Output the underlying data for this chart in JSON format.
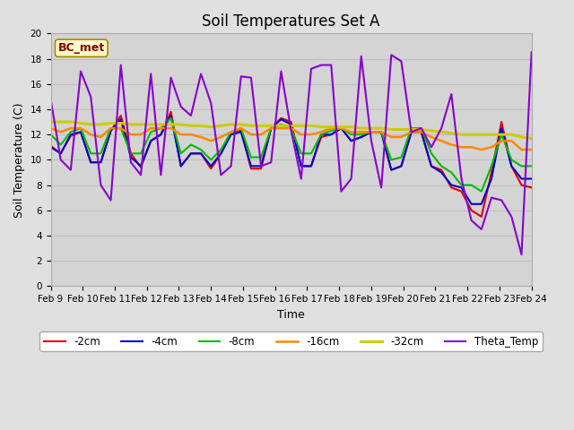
{
  "title": "Soil Temperatures Set A",
  "xlabel": "Time",
  "ylabel": "Soil Temperature (C)",
  "ylim": [
    0,
    20
  ],
  "background_color": "#e0e0e0",
  "plot_bg_color": "#d4d4d4",
  "annotation_text": "BC_met",
  "annotation_bg": "#ffffcc",
  "annotation_fg": "#880000",
  "legend_labels": [
    "-2cm",
    "-4cm",
    "-8cm",
    "-16cm",
    "-32cm",
    "Theta_Temp"
  ],
  "line_colors": [
    "#dd0000",
    "#0000cc",
    "#00bb00",
    "#ff8800",
    "#cccc00",
    "#8800cc"
  ],
  "line_widths": [
    1.5,
    1.5,
    1.5,
    1.8,
    2.2,
    1.5
  ],
  "xtick_labels": [
    "Feb 9",
    "Feb 10",
    "Feb 11",
    "Feb 12",
    "Feb 13",
    "Feb 14",
    "Feb 15",
    "Feb 16",
    "Feb 17",
    "Feb 18",
    "Feb 19",
    "Feb 20",
    "Feb 21",
    "Feb 22",
    "Feb 23",
    "Feb 24"
  ],
  "grid_color": "#c0c0c0",
  "title_fontsize": 12,
  "axis_fontsize": 9,
  "tick_fontsize": 7.5,
  "series": {
    "neg2cm": [
      11.1,
      10.5,
      11.9,
      12.2,
      9.8,
      9.8,
      12.3,
      13.5,
      10.5,
      9.4,
      11.5,
      12.0,
      13.8,
      9.5,
      10.5,
      10.5,
      9.3,
      10.5,
      12.2,
      12.3,
      9.3,
      9.3,
      12.5,
      13.3,
      13.0,
      9.5,
      9.5,
      11.8,
      12.0,
      12.5,
      11.5,
      11.8,
      12.2,
      12.2,
      9.2,
      9.5,
      12.2,
      12.2,
      9.5,
      9.2,
      7.8,
      7.5,
      6.0,
      5.5,
      9.0,
      13.0,
      9.5,
      8.0,
      7.8
    ],
    "neg4cm": [
      11.0,
      10.5,
      12.0,
      12.2,
      9.8,
      9.8,
      12.3,
      13.2,
      10.2,
      9.5,
      11.5,
      12.0,
      13.5,
      9.5,
      10.5,
      10.5,
      9.5,
      10.5,
      12.0,
      12.2,
      9.5,
      9.5,
      12.5,
      13.2,
      12.8,
      9.5,
      9.5,
      12.0,
      12.0,
      12.5,
      11.5,
      11.8,
      12.2,
      12.2,
      9.2,
      9.5,
      12.2,
      12.2,
      9.5,
      9.0,
      8.0,
      7.8,
      6.5,
      6.5,
      8.5,
      12.5,
      9.5,
      8.5,
      8.5
    ],
    "neg8cm": [
      12.0,
      11.2,
      12.2,
      12.5,
      10.5,
      10.5,
      12.5,
      12.5,
      10.5,
      10.5,
      12.2,
      12.5,
      13.3,
      10.5,
      11.2,
      10.8,
      10.0,
      10.8,
      12.2,
      12.5,
      10.2,
      10.2,
      12.5,
      12.8,
      12.5,
      10.5,
      10.5,
      12.0,
      12.3,
      12.5,
      12.0,
      12.0,
      12.2,
      12.2,
      10.0,
      10.2,
      12.5,
      12.5,
      10.5,
      9.5,
      9.0,
      8.0,
      8.0,
      7.5,
      9.5,
      12.0,
      10.0,
      9.5,
      9.5
    ],
    "neg16cm": [
      12.5,
      12.2,
      12.5,
      12.5,
      12.0,
      11.8,
      12.5,
      12.5,
      12.0,
      12.0,
      12.5,
      12.5,
      12.5,
      12.0,
      12.0,
      11.8,
      11.5,
      11.8,
      12.2,
      12.5,
      12.0,
      12.0,
      12.5,
      12.5,
      12.5,
      12.0,
      12.0,
      12.2,
      12.5,
      12.5,
      12.2,
      12.2,
      12.2,
      12.2,
      11.8,
      11.8,
      12.2,
      12.2,
      11.8,
      11.5,
      11.2,
      11.0,
      11.0,
      10.8,
      11.0,
      11.5,
      11.5,
      10.8,
      10.8
    ],
    "neg32cm": [
      13.0,
      13.0,
      13.0,
      12.9,
      12.8,
      12.8,
      12.9,
      12.9,
      12.8,
      12.8,
      12.8,
      12.8,
      12.8,
      12.8,
      12.7,
      12.7,
      12.6,
      12.7,
      12.8,
      12.8,
      12.7,
      12.7,
      12.7,
      12.7,
      12.7,
      12.7,
      12.7,
      12.6,
      12.6,
      12.6,
      12.6,
      12.5,
      12.5,
      12.5,
      12.4,
      12.4,
      12.4,
      12.4,
      12.3,
      12.2,
      12.1,
      12.0,
      12.0,
      12.0,
      12.0,
      12.0,
      12.0,
      11.8,
      11.7
    ],
    "theta": [
      14.8,
      10.0,
      9.2,
      17.0,
      15.0,
      8.0,
      6.8,
      17.5,
      9.8,
      8.8,
      16.8,
      8.8,
      16.5,
      14.2,
      13.5,
      16.8,
      14.5,
      8.8,
      9.5,
      16.6,
      16.5,
      9.5,
      9.8,
      17.0,
      12.3,
      8.5,
      17.2,
      17.5,
      17.5,
      7.5,
      8.5,
      18.2,
      11.5,
      7.8,
      18.3,
      17.8,
      12.2,
      12.5,
      11.0,
      12.5,
      15.2,
      8.5,
      5.2,
      4.5,
      7.0,
      6.8,
      5.5,
      2.5,
      18.5
    ]
  }
}
